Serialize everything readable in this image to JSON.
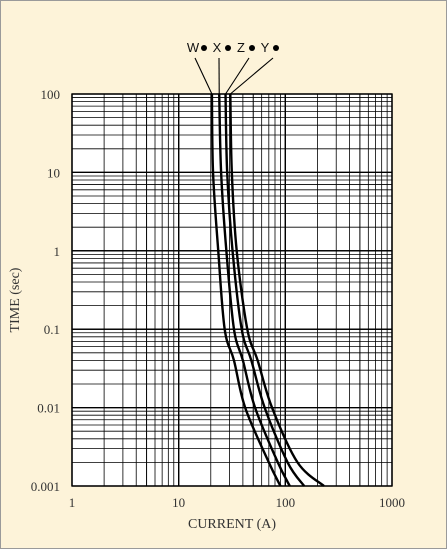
{
  "chart_data": {
    "type": "line",
    "title": "",
    "xlabel": "CURRENT (A)",
    "ylabel": "TIME (sec)",
    "x_scale": "log",
    "y_scale": "log",
    "xlim": [
      1,
      1000
    ],
    "ylim": [
      0.001,
      100
    ],
    "x_ticks": [
      {
        "value": 1,
        "label": "1"
      },
      {
        "value": 10,
        "label": "10"
      },
      {
        "value": 100,
        "label": "100"
      },
      {
        "value": 1000,
        "label": "1000"
      }
    ],
    "y_ticks": [
      {
        "value": 100,
        "label": "100"
      },
      {
        "value": 10,
        "label": "10"
      },
      {
        "value": 1,
        "label": "1"
      },
      {
        "value": 0.1,
        "label": "0.1"
      },
      {
        "value": 0.01,
        "label": "0.01"
      },
      {
        "value": 0.001,
        "label": "0.001"
      }
    ],
    "grid": true,
    "legend": "top-center",
    "series": [
      {
        "name": "W",
        "points": [
          [
            20.5,
            100
          ],
          [
            21.0,
            10
          ],
          [
            23.5,
            1
          ],
          [
            27.0,
            0.1
          ],
          [
            33.0,
            0.04
          ],
          [
            42.0,
            0.01
          ],
          [
            70.0,
            0.002
          ],
          [
            90.0,
            0.001
          ]
        ]
      },
      {
        "name": "X",
        "points": [
          [
            24.0,
            100
          ],
          [
            25.0,
            10
          ],
          [
            28.0,
            1
          ],
          [
            33.0,
            0.1
          ],
          [
            40.0,
            0.04
          ],
          [
            52.0,
            0.01
          ],
          [
            85.0,
            0.002
          ],
          [
            110.0,
            0.001
          ]
        ]
      },
      {
        "name": "Z",
        "points": [
          [
            27.5,
            100
          ],
          [
            28.5,
            10
          ],
          [
            32.0,
            1
          ],
          [
            39.0,
            0.1
          ],
          [
            48.0,
            0.04
          ],
          [
            64.0,
            0.01
          ],
          [
            105.0,
            0.002
          ],
          [
            150.0,
            0.001
          ]
        ]
      },
      {
        "name": "Y",
        "points": [
          [
            30.5,
            100
          ],
          [
            31.5,
            10
          ],
          [
            35.0,
            1
          ],
          [
            44.0,
            0.1
          ],
          [
            55.0,
            0.04
          ],
          [
            75.0,
            0.01
          ],
          [
            130.0,
            0.002
          ],
          [
            230.0,
            0.001
          ]
        ]
      }
    ]
  },
  "colors": {
    "background": "#fdf3d9",
    "plot_area": "#ffffff",
    "grid": "#000000",
    "curve": "#000000",
    "text": "#333333"
  }
}
